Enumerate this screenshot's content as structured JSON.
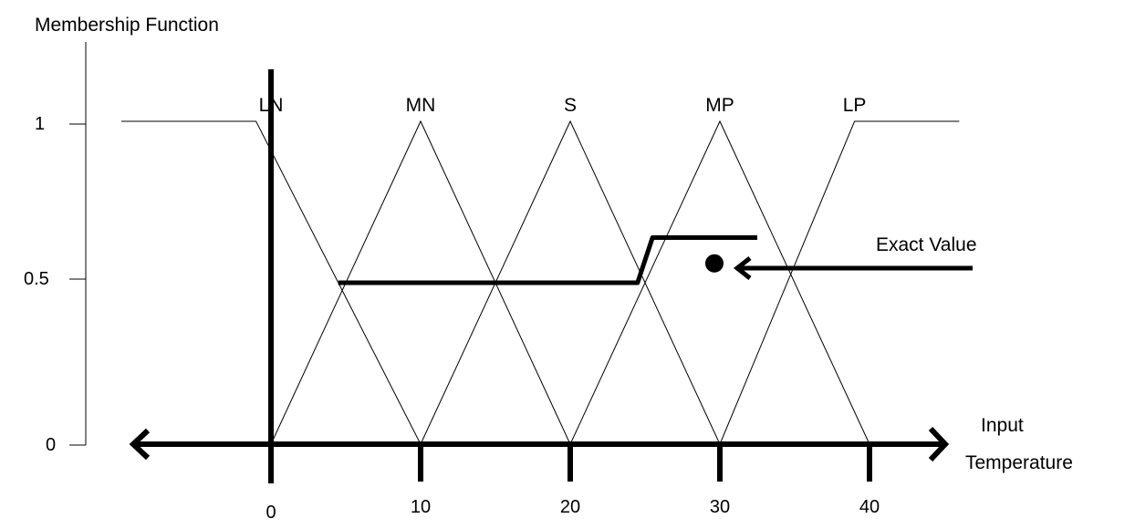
{
  "ylabel": "Membership Function",
  "xlabel_line1": "Input",
  "xlabel_line2": "Temperature",
  "y_ticks": [
    "1",
    "0.5",
    "0"
  ],
  "x_ticks": [
    "0",
    "10",
    "20",
    "30",
    "40"
  ],
  "sets": [
    {
      "name": "LN",
      "shape": "left-shoulder",
      "points": [
        [
          -10,
          1
        ],
        [
          -1,
          1
        ],
        [
          10,
          0
        ]
      ]
    },
    {
      "name": "MN",
      "shape": "triangle",
      "points": [
        [
          0,
          0
        ],
        [
          10,
          1
        ],
        [
          20,
          0
        ]
      ]
    },
    {
      "name": "S",
      "shape": "triangle",
      "points": [
        [
          10,
          0
        ],
        [
          20,
          1
        ],
        [
          30,
          0
        ]
      ]
    },
    {
      "name": "MP",
      "shape": "triangle",
      "points": [
        [
          20,
          0
        ],
        [
          30,
          1
        ],
        [
          40,
          0
        ]
      ]
    },
    {
      "name": "LP",
      "shape": "right-shoulder",
      "points": [
        [
          30,
          0
        ],
        [
          39,
          1
        ],
        [
          46,
          1
        ]
      ]
    }
  ],
  "output_curve": [
    [
      4.5,
      0.5
    ],
    [
      24.5,
      0.5
    ],
    [
      25.5,
      0.64
    ],
    [
      32.5,
      0.64
    ]
  ],
  "exact_value": {
    "label": "Exact Value",
    "x": 30,
    "y": 0.56
  },
  "colors": {
    "line": "#000000",
    "background": "#ffffff"
  }
}
